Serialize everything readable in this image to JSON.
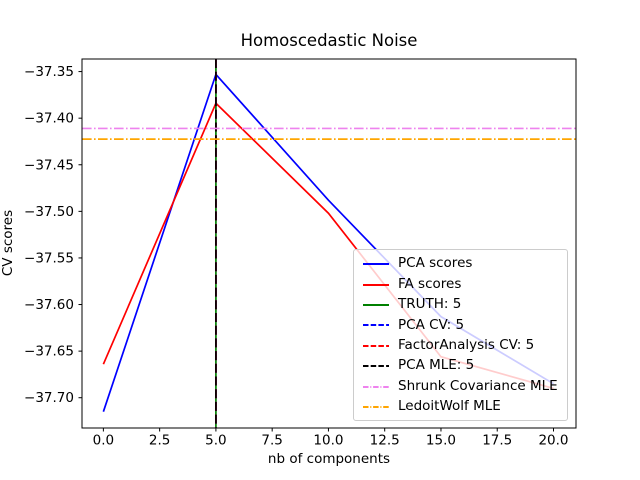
{
  "chart_data": {
    "type": "line",
    "title": "Homoscedastic Noise",
    "xlabel": "nb of components",
    "ylabel": "CV scores",
    "xlim": [
      -0.95,
      21.0
    ],
    "ylim": [
      -37.7325,
      -37.3365
    ],
    "grid": false,
    "legend_position": "center right",
    "x_ticks": [
      0.0,
      2.5,
      5.0,
      7.5,
      10.0,
      12.5,
      15.0,
      17.5,
      20.0
    ],
    "x_tick_labels": [
      "0.0",
      "2.5",
      "5.0",
      "7.5",
      "10.0",
      "12.5",
      "15.0",
      "17.5",
      "20.0"
    ],
    "y_ticks": [
      -37.35,
      -37.4,
      -37.45,
      -37.5,
      -37.55,
      -37.6,
      -37.65,
      -37.7
    ],
    "y_tick_labels": [
      "−37.35",
      "−37.40",
      "−37.45",
      "−37.50",
      "−37.55",
      "−37.60",
      "−37.65",
      "−37.70"
    ],
    "series": [
      {
        "name": "PCA scores",
        "color": "#0000ff",
        "style": "solid",
        "x": [
          0,
          5,
          10,
          15,
          20
        ],
        "y": [
          -37.715,
          -37.353,
          -37.488,
          -37.613,
          -37.685
        ]
      },
      {
        "name": "FA scores",
        "color": "#ff0000",
        "style": "solid",
        "x": [
          0,
          5,
          10,
          15,
          20
        ],
        "y": [
          -37.664,
          -37.384,
          -37.502,
          -37.656,
          -37.69
        ]
      }
    ],
    "vlines": [
      {
        "name": "TRUTH: 5",
        "x": 5,
        "color": "#008000",
        "style": "solid"
      },
      {
        "name": "PCA CV: 5",
        "x": 5,
        "color": "#0000ff",
        "style": "dashed"
      },
      {
        "name": "FactorAnalysis CV: 5",
        "x": 5,
        "color": "#ff0000",
        "style": "dashed"
      },
      {
        "name": "PCA MLE: 5",
        "x": 5,
        "color": "#000000",
        "style": "dashed"
      }
    ],
    "hlines": [
      {
        "name": "Shrunk Covariance MLE",
        "y": -37.411,
        "color": "#ee82ee",
        "style": "dashdot"
      },
      {
        "name": "LedoitWolf MLE",
        "y": -37.4225,
        "color": "#ffa500",
        "style": "dashdot"
      }
    ]
  }
}
